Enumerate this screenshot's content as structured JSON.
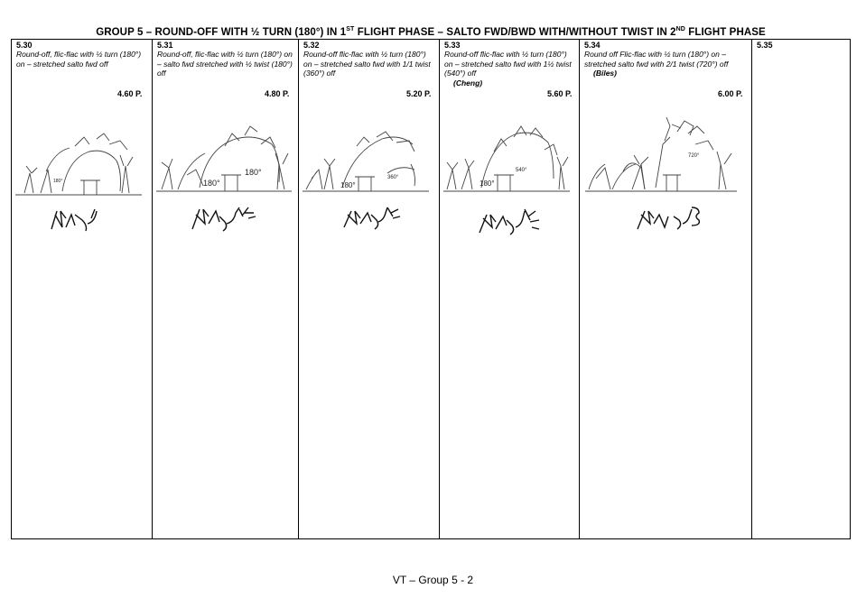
{
  "title": {
    "part1": "GROUP 5 – ROUND-OFF WITH ½ TURN (180°) IN 1",
    "sup1": "ST",
    "part2": " FLIGHT PHASE – SALTO FWD/BWD WITH/WITHOUT TWIST IN 2",
    "sup2": "ND",
    "part3": " FLIGHT PHASE"
  },
  "elements": [
    {
      "number": "5.30",
      "description": "Round-off, flic-flac with ½ turn (180°) on – stretched salto fwd off",
      "gymnast": "",
      "value": "4.60 P.",
      "drawing_labels": [
        "180°"
      ],
      "icon": "vault-drawing-icon"
    },
    {
      "number": "5.31",
      "description": "Round-off, flic-flac with ½ turn (180°) on – salto fwd stretched with ½ twist (180°) off",
      "gymnast": "",
      "value": "4.80 P.",
      "drawing_labels": [
        "180°",
        "180°"
      ],
      "icon": "vault-drawing-icon"
    },
    {
      "number": "5.32",
      "description": "Round-off flic-flac with ½ turn (180°) on – stretched salto fwd with 1/1 twist (360°) off",
      "gymnast": "",
      "value": "5.20 P.",
      "drawing_labels": [
        "180°",
        "360°"
      ],
      "icon": "vault-drawing-icon"
    },
    {
      "number": "5.33",
      "description": "Round-off flic-flac with ½ turn (180°) on – stretched salto fwd with 1½ twist (540°) off",
      "gymnast": "(Cheng)",
      "value": "5.60 P.",
      "drawing_labels": [
        "180°",
        "540°"
      ],
      "icon": "vault-drawing-icon"
    },
    {
      "number": "5.34",
      "description": "Round off Flic-flac with ½ turn (180°) on – stretched salto fwd with 2/1 twist (720°) off",
      "gymnast": "(Biles)",
      "value": "6.00 P.",
      "drawing_labels": [
        "720°"
      ],
      "icon": "vault-drawing-icon"
    },
    {
      "number": "5.35",
      "description": "",
      "gymnast": "",
      "value": "",
      "drawing_labels": [],
      "icon": ""
    }
  ],
  "footer": "VT – Group 5 - 2"
}
